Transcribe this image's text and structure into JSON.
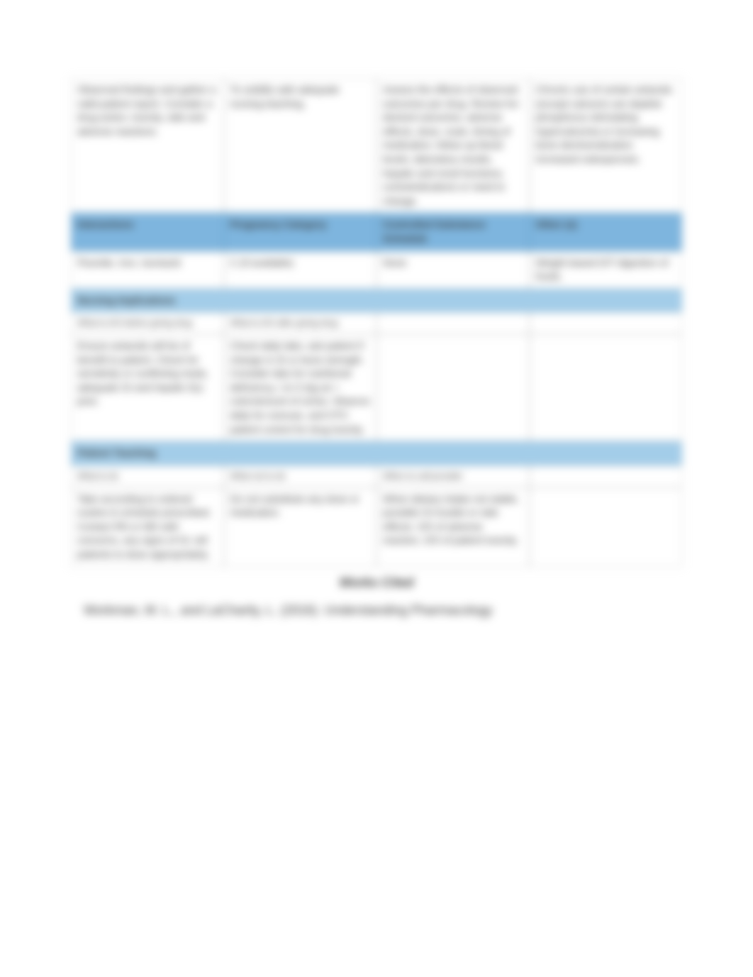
{
  "topRow": {
    "c1": "Observed findings and gather a valid patient report. Consider a drug action, toxicity, side and adverse reactions.",
    "c2": "To solidify safe adequate nursing teaching.",
    "c3": "Assess the effects of observed outcomes per drug.  Review for: desired outcomes, adverse effects, dose, route, timing of medication, follow up blood levels, laboratory results, hepatic and renal functions, contraindications or need to change.",
    "c4": "Chronic use of certain antacids (except calcium) can deplete phosphorus stimulating hypercalcemia or increasing bone demineralization increased osteoporosis."
  },
  "interactionsHeader": {
    "c1": "Interactions",
    "c2": "Pregnancy Category",
    "c3": "Controlled Substance Schedule",
    "c4": "Other (s)"
  },
  "interactionsRow": {
    "c1": "Fluoride, Iron, Isoniazid",
    "c2": "C (if available)",
    "c3": "None",
    "c4": "Weight based D/T digestion of foods."
  },
  "sectionNursing": "Nursing Implications",
  "nursingSub": {
    "c1": "What to DO before giving drug",
    "c2": "What to DO after giving drug"
  },
  "nursingRow": {
    "c1": "Ensure antacids will be of benefit to patient. Check for sensitivity or conflicting meds, adequate GI and hepatic f(x) prior.",
    "c2": "Check daily labs, ask patient if change in GI or bone strength. Consider labs for nutritional deficiency, I & O (kg wt + color/amount of urine). Observe daily for overuse, and OTC patient control for drug toxicity.",
    "c3": "",
    "c4": ""
  },
  "sectionTeaching": "Patient Teaching",
  "teachingSub": {
    "c1": "What to do",
    "c2": "What not to do",
    "c3": "When to call provider"
  },
  "teachingRow": {
    "c1": "Take according to ordered routine & schedule prescribed. Contact RN or MD with concerns, any signs of GI, tell patients to dose appropriately.",
    "c2": "Do not substitute any dose or medication.",
    "c3": "When dietary intake not stable, possible GI trouble or side effects. S/S of adverse reaction, S/S of patient toxicity.",
    "c4": ""
  },
  "worksCited": "Works Cited",
  "citation": "Workman, M. L., and LaCharity, L. (2016). Understanding Pharmacology"
}
